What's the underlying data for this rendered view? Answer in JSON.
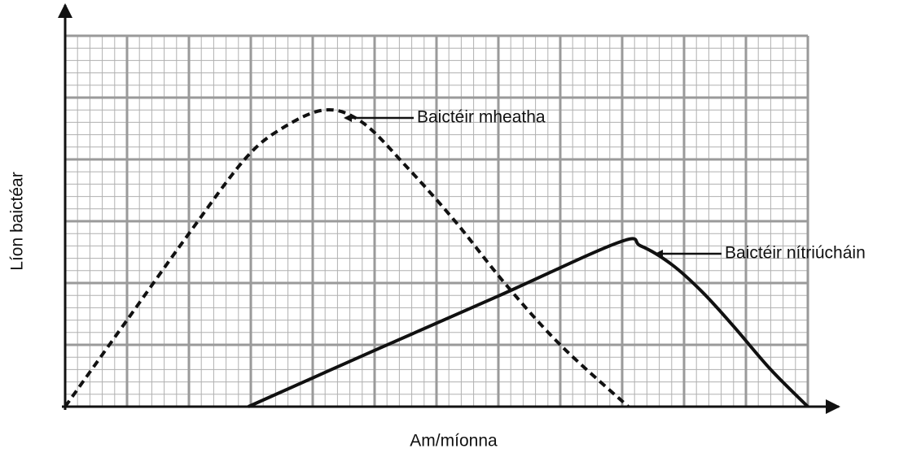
{
  "chart_data": {
    "type": "line",
    "xlabel": "Am/míonna",
    "ylabel": "Líon baictéar",
    "xlim": [
      0,
      12
    ],
    "ylim": [
      0,
      6
    ],
    "grid": true,
    "series": [
      {
        "name": "Baictéir mheatha",
        "color": "#111111",
        "linestyle": "dashed",
        "x": [
          0,
          1,
          2,
          2.9,
          3.5,
          4.2,
          4.8,
          5.5,
          6.3,
          7.1,
          8,
          9.1
        ],
        "values": [
          0,
          1.4,
          2.8,
          4.0,
          4.5,
          4.8,
          4.6,
          3.9,
          3.0,
          2.0,
          1.0,
          0
        ]
      },
      {
        "name": "Baictéir nítriúcháin",
        "color": "#111111",
        "linestyle": "solid",
        "x": [
          2.96,
          5,
          7,
          8.95,
          9.3,
          9.8,
          10.3,
          10.8,
          11.4,
          12
        ],
        "values": [
          0,
          0.91,
          1.79,
          2.66,
          2.6,
          2.3,
          1.85,
          1.3,
          0.6,
          0
        ]
      }
    ]
  }
}
